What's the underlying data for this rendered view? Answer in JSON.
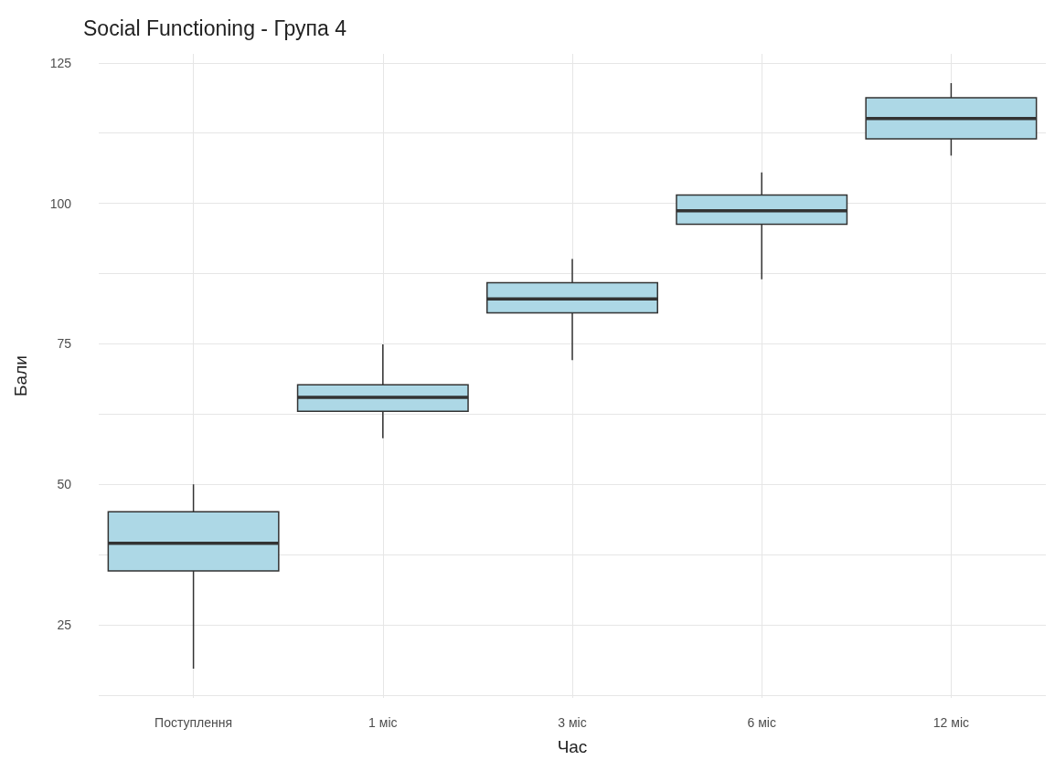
{
  "chart_data": {
    "type": "box",
    "title": "Social Functioning - Група 4",
    "xlabel": "Час",
    "ylabel": "Бали",
    "categories": [
      "Поступлення",
      "1 міс",
      "3 міс",
      "6 міс",
      "12 міс"
    ],
    "color": "#add8e6",
    "boxes": [
      {
        "low": 17.2,
        "q1": 34.6,
        "median": 39.5,
        "q3": 45.1,
        "high": 50
      },
      {
        "low": 58.2,
        "q1": 63,
        "median": 65.5,
        "q3": 67.7,
        "high": 74.9
      },
      {
        "low": 72.1,
        "q1": 80.5,
        "median": 83,
        "q3": 85.9,
        "high": 90.1
      },
      {
        "low": 86.5,
        "q1": 96.3,
        "median": 98.7,
        "q3": 101.5,
        "high": 105.5
      },
      {
        "low": 108.5,
        "q1": 111.5,
        "median": 115.1,
        "q3": 118.8,
        "high": 121.4
      }
    ],
    "ylim": [
      12,
      126.6
    ],
    "yticks": [
      {
        "value": 12.5,
        "label": null
      },
      25,
      {
        "value": 37.5,
        "label": null
      },
      50,
      {
        "value": 62.5,
        "label": null
      },
      75,
      {
        "value": 87.5,
        "label": null
      },
      100,
      {
        "value": 112.5,
        "label": null
      },
      125
    ],
    "grid": true
  }
}
